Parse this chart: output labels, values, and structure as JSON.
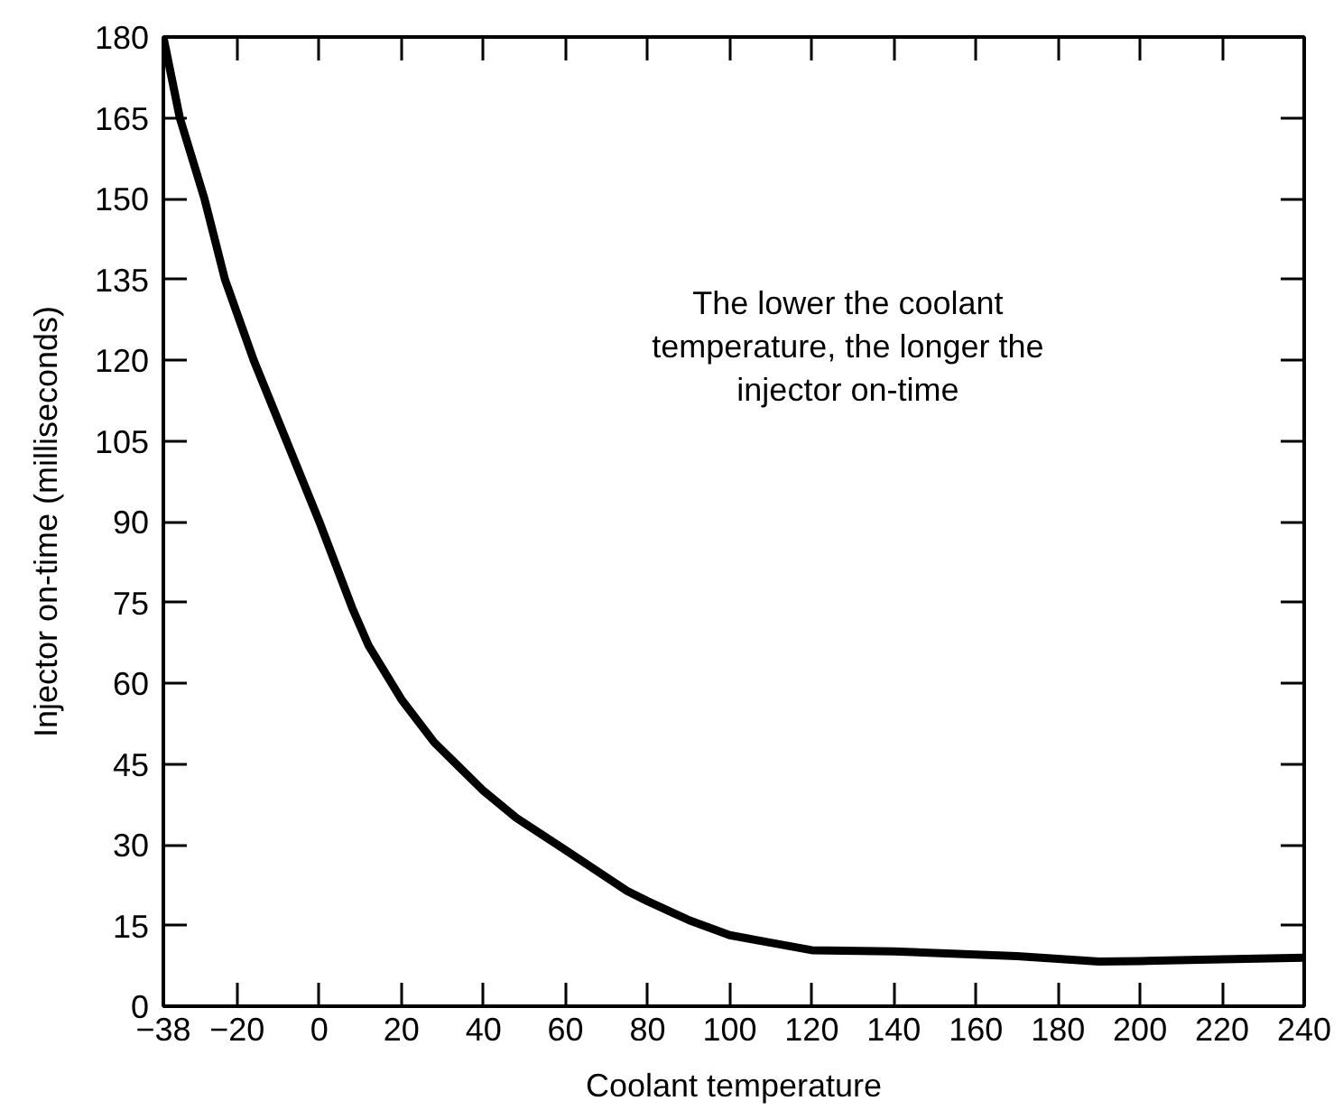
{
  "chart_data": {
    "type": "line",
    "xlabel": "Coolant temperature",
    "ylabel": "Injector on-time (milliseconds)",
    "annotations": [
      "The lower the coolant\ntemperature, the longer the\ninjector on-time"
    ],
    "x": [
      -38,
      -34,
      -28,
      -23,
      -16,
      -8,
      0,
      8,
      12,
      20,
      28,
      40,
      48,
      60,
      75,
      80,
      90,
      100,
      110,
      120,
      140,
      160,
      170,
      180,
      190,
      200,
      220,
      240
    ],
    "series": [
      {
        "color": "#000000",
        "values": [
          180,
          165,
          150,
          135,
          120,
          105,
          90,
          74,
          67,
          57,
          49,
          40,
          35,
          29,
          21.4,
          19.5,
          16,
          13.2,
          11.8,
          10.4,
          10.2,
          9.6,
          9.3,
          8.8,
          8.3,
          8.4,
          8.7,
          9.0
        ]
      }
    ],
    "xlim": [
      -38,
      240
    ],
    "ylim": [
      0,
      180
    ],
    "xticks": [
      {
        "value": -38,
        "label": "−38"
      },
      {
        "value": -20,
        "label": "−20"
      },
      0,
      20,
      40,
      60,
      80,
      100,
      120,
      140,
      160,
      180,
      200,
      220,
      240
    ],
    "yticks": [
      0,
      15,
      30,
      45,
      60,
      75,
      90,
      105,
      120,
      135,
      150,
      165,
      180
    ],
    "line_style": "solid"
  }
}
